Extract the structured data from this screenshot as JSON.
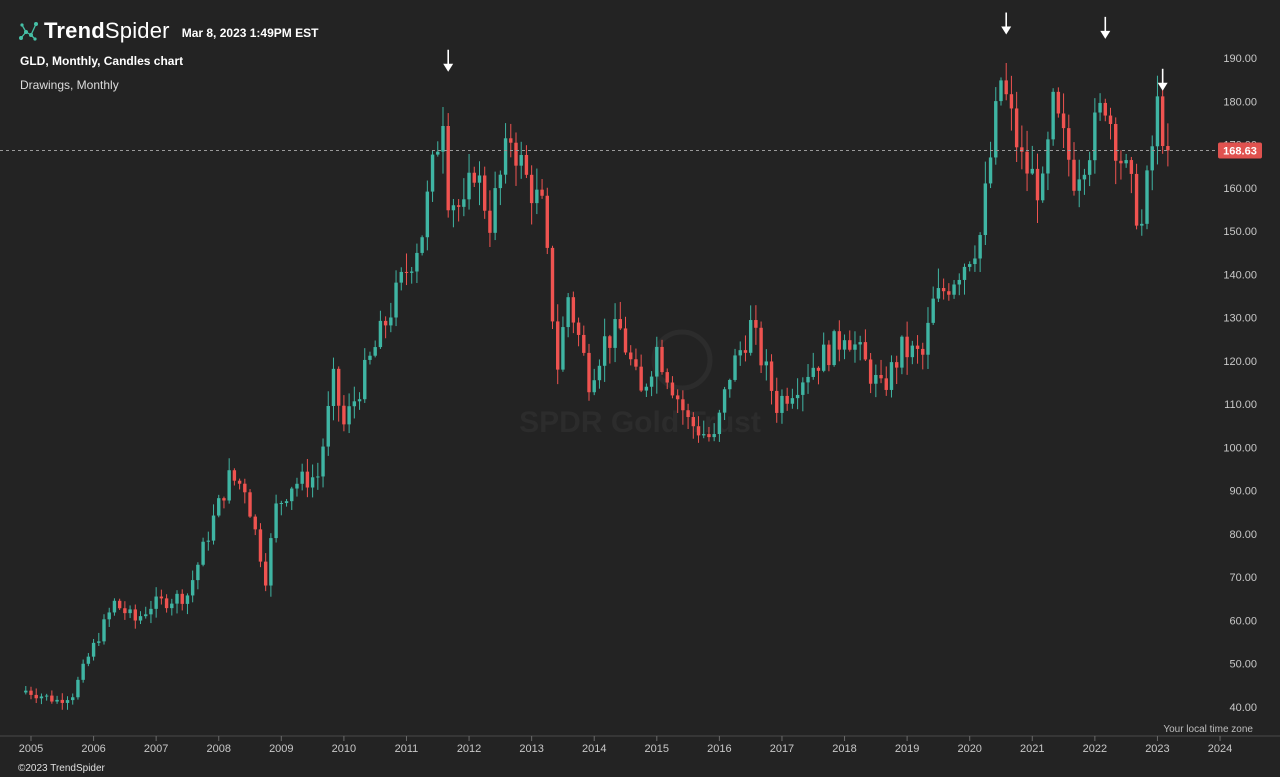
{
  "header": {
    "brand_bold": "Trend",
    "brand_light": "Spider",
    "timestamp": "Mar 8, 2023 1:49PM EST",
    "symbol_line": "GLD, Monthly, Candles chart",
    "drawings_line": "Drawings, Monthly"
  },
  "footer": {
    "timezone_label": "Your local time zone",
    "copyright": "©2023 TrendSpider"
  },
  "watermark": "SPDR Gold Trust",
  "colors": {
    "up": "#3fb5a3",
    "down": "#ef5350",
    "background": "#232323",
    "price_tag": "#e0524f",
    "logo_accent": "#46c0a6"
  },
  "icons": [
    "trendspider-logo-icon",
    "down-arrow-icon"
  ],
  "chart_data": {
    "type": "candlestick",
    "symbol": "GLD",
    "interval": "Monthly",
    "y_ticks": [
      40,
      50,
      60,
      70,
      80,
      90,
      100,
      110,
      120,
      130,
      140,
      150,
      160,
      170,
      180,
      190
    ],
    "y_tick_labels": [
      "40.00",
      "50.00",
      "60.00",
      "70.00",
      "80.00",
      "90.00",
      "100.00",
      "110.00",
      "120.00",
      "130.00",
      "140.00",
      "150.00",
      "160.00",
      "170.00",
      "180.00",
      "190.00"
    ],
    "x_tick_labels": [
      "2005",
      "2006",
      "2007",
      "2008",
      "2009",
      "2010",
      "2011",
      "2012",
      "2013",
      "2014",
      "2015",
      "2016",
      "2017",
      "2018",
      "2019",
      "2020",
      "2021",
      "2022",
      "2023",
      "2024"
    ],
    "ylim": [
      37,
      197
    ],
    "last_price": 168.63,
    "last_price_label": "168.63",
    "grid": false,
    "annotations": [
      {
        "type": "arrow_down",
        "date": "2011-09",
        "price": 185.9
      },
      {
        "type": "arrow_down",
        "date": "2020-08",
        "price": 194.5
      },
      {
        "type": "arrow_down",
        "date": "2022-03",
        "price": 193.5
      },
      {
        "type": "arrow_down",
        "date": "2023-02",
        "price": 181.5
      }
    ],
    "close_path": [
      [
        "2004-12",
        43.8
      ],
      [
        "2005-06",
        41.5
      ],
      [
        "2005-09",
        43.0
      ],
      [
        "2005-12",
        51.5
      ],
      [
        "2006-05",
        64.0
      ],
      [
        "2006-09",
        60.0
      ],
      [
        "2006-12",
        63.5
      ],
      [
        "2007-07",
        66.0
      ],
      [
        "2007-12",
        83.5
      ],
      [
        "2008-03",
        93.0
      ],
      [
        "2008-06",
        91.0
      ],
      [
        "2008-10",
        70.0
      ],
      [
        "2008-12",
        86.0
      ],
      [
        "2009-03",
        91.5
      ],
      [
        "2009-08",
        93.5
      ],
      [
        "2009-11",
        115.0
      ],
      [
        "2010-01",
        105.0
      ],
      [
        "2010-06",
        120.0
      ],
      [
        "2010-12",
        138.0
      ],
      [
        "2011-04",
        150.0
      ],
      [
        "2011-08",
        178.0
      ],
      [
        "2011-09",
        159.0
      ],
      [
        "2011-12",
        154.0
      ],
      [
        "2012-02",
        165.0
      ],
      [
        "2012-05",
        152.5
      ],
      [
        "2012-09",
        172.0
      ],
      [
        "2012-12",
        162.0
      ],
      [
        "2013-03",
        155.0
      ],
      [
        "2013-06",
        119.0
      ],
      [
        "2013-08",
        135.0
      ],
      [
        "2013-12",
        116.0
      ],
      [
        "2014-03",
        124.5
      ],
      [
        "2014-06",
        127.0
      ],
      [
        "2014-10",
        112.0
      ],
      [
        "2015-01",
        123.0
      ],
      [
        "2015-07",
        106.0
      ],
      [
        "2015-12",
        101.5
      ],
      [
        "2016-03",
        117.0
      ],
      [
        "2016-07",
        128.0
      ],
      [
        "2016-12",
        110.0
      ],
      [
        "2017-06",
        118.0
      ],
      [
        "2017-12",
        124.5
      ],
      [
        "2018-01",
        127.5
      ],
      [
        "2018-08",
        113.0
      ],
      [
        "2018-12",
        122.5
      ],
      [
        "2019-04",
        121.0
      ],
      [
        "2019-06",
        133.0
      ],
      [
        "2019-12",
        143.0
      ],
      [
        "2020-03",
        149.0
      ],
      [
        "2020-07",
        185.0
      ],
      [
        "2020-11",
        166.0
      ],
      [
        "2021-03",
        159.0
      ],
      [
        "2021-05",
        178.0
      ],
      [
        "2021-09",
        163.0
      ],
      [
        "2021-12",
        170.0
      ],
      [
        "2022-03",
        180.5
      ],
      [
        "2022-05",
        171.0
      ],
      [
        "2022-10",
        151.0
      ],
      [
        "2022-12",
        169.5
      ],
      [
        "2023-01",
        178.5
      ],
      [
        "2023-03",
        168.63
      ]
    ]
  }
}
